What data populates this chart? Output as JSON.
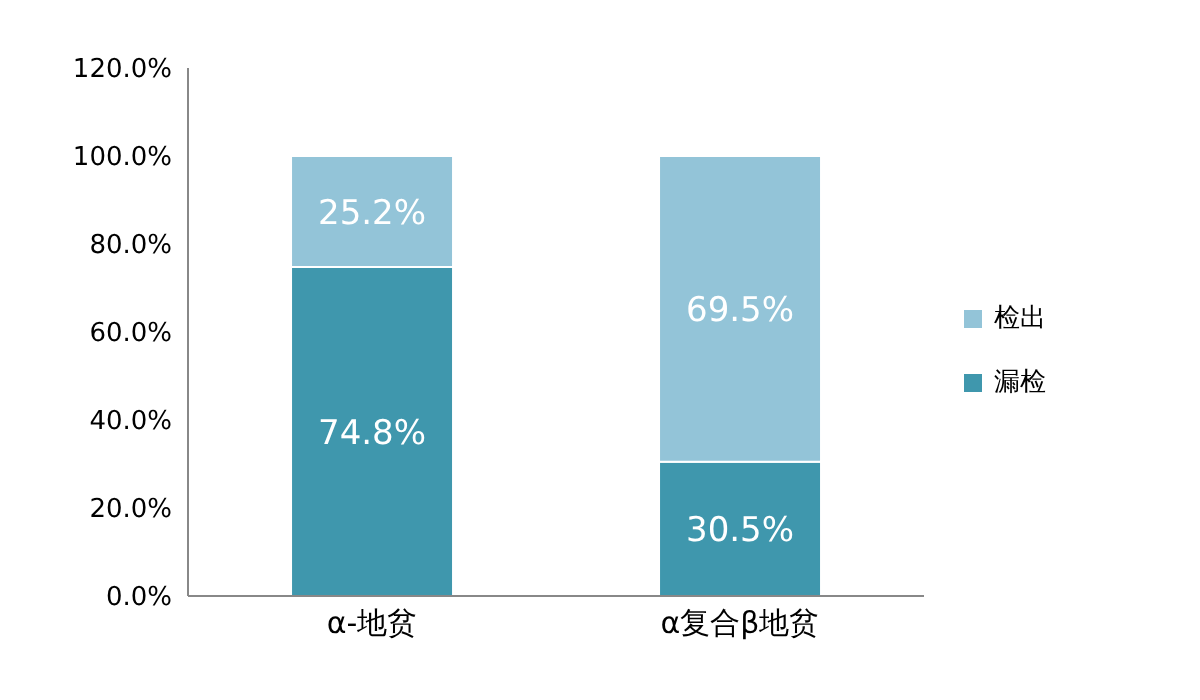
{
  "chart_data": {
    "type": "bar",
    "stacked": true,
    "categories": [
      "α-地贫",
      "α复合β地贫"
    ],
    "series": [
      {
        "name": "漏检",
        "color": "#3f97ad",
        "values": [
          74.8,
          30.5
        ],
        "value_labels": [
          "74.8%",
          "30.5%"
        ]
      },
      {
        "name": "检出",
        "color": "#93c4d8",
        "values": [
          25.2,
          69.5
        ],
        "value_labels": [
          "25.2%",
          "69.5%"
        ]
      }
    ],
    "ylim": [
      0,
      120
    ],
    "yticks": [
      {
        "value": 0,
        "label": "0.0%"
      },
      {
        "value": 20,
        "label": "20.0%"
      },
      {
        "value": 40,
        "label": "40.0%"
      },
      {
        "value": 60,
        "label": "60.0%"
      },
      {
        "value": 80,
        "label": "80.0%"
      },
      {
        "value": 100,
        "label": "100.0%"
      },
      {
        "value": 120,
        "label": "120.0%"
      }
    ],
    "legend": "right"
  }
}
